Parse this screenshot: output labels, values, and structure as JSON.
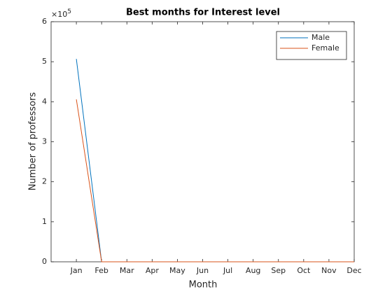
{
  "chart_data": {
    "type": "line",
    "title": "Best months for Interest level",
    "x_label": "Month",
    "y_label": "Number of professors",
    "y_multiplier": "×10",
    "y_multiplier_exponent": "5",
    "categories": [
      "Jan",
      "Feb",
      "Mar",
      "Apr",
      "May",
      "Jun",
      "Jul",
      "Aug",
      "Sep",
      "Oct",
      "Nov",
      "Dec"
    ],
    "series": [
      {
        "name": "Male",
        "color": "#0072bd",
        "values": [
          507000,
          0,
          0,
          0,
          0,
          0,
          0,
          0,
          0,
          0,
          0,
          0
        ]
      },
      {
        "name": "Female",
        "color": "#d95319",
        "values": [
          406000,
          0,
          0,
          0,
          0,
          0,
          0,
          0,
          0,
          0,
          0,
          0
        ]
      }
    ],
    "ylim": [
      0,
      600000
    ],
    "yticks": [
      {
        "value": 0,
        "label": "0"
      },
      {
        "value": 100000,
        "label": "1"
      },
      {
        "value": 200000,
        "label": "2"
      },
      {
        "value": 300000,
        "label": "3"
      },
      {
        "value": 400000,
        "label": "4"
      },
      {
        "value": 500000,
        "label": "5"
      },
      {
        "value": 600000,
        "label": "6"
      }
    ],
    "legend": "northeast",
    "grid": false
  }
}
